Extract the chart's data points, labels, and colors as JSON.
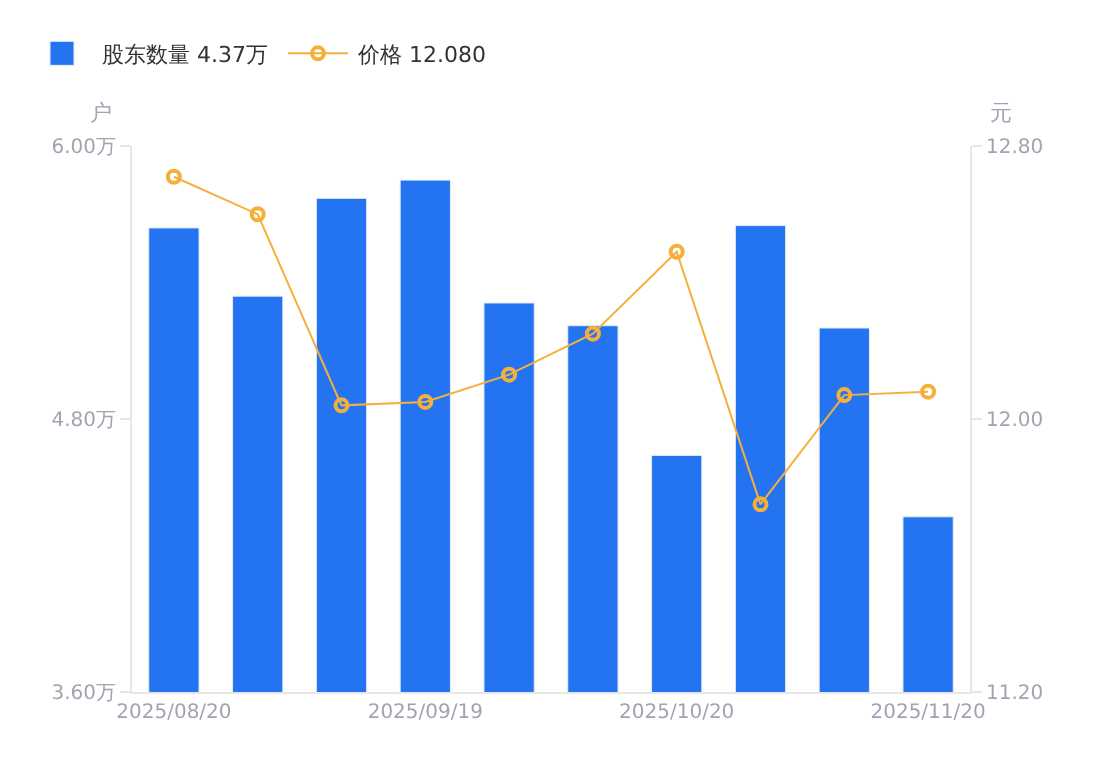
{
  "chart_data": {
    "type": "bar",
    "categories": [
      "2025/08/20",
      null,
      null,
      "2025/09/19",
      null,
      null,
      "2025/10/20",
      null,
      null,
      "2025/11/20"
    ],
    "series": [
      {
        "name": "股东数量 4.37万",
        "color": "#2474f2",
        "values": [
          5.64,
          5.34,
          5.77,
          5.85,
          5.31,
          5.21,
          4.64,
          5.65,
          5.2,
          4.37
        ]
      },
      {
        "name": "价格 12.080",
        "type": "line",
        "axis": "y2",
        "color": "#f5b03a",
        "marker": "circle",
        "values": [
          12.71,
          12.6,
          12.04,
          12.05,
          12.13,
          12.25,
          12.49,
          11.75,
          12.07,
          12.08
        ]
      }
    ],
    "ylabel": "户",
    "y2label": "元",
    "ylim": [
      3.6,
      6.0
    ],
    "yticks": [
      {
        "value": 3.6,
        "label": "3.60万"
      },
      {
        "value": 4.8,
        "label": "4.80万"
      },
      {
        "value": 6.0,
        "label": "6.00万"
      }
    ],
    "y2lim": [
      11.2,
      12.8
    ],
    "y2ticks": [
      {
        "value": 11.2,
        "label": "11.20"
      },
      {
        "value": 12.0,
        "label": "12.00"
      },
      {
        "value": 12.8,
        "label": "12.80"
      }
    ],
    "legend": "top left"
  }
}
